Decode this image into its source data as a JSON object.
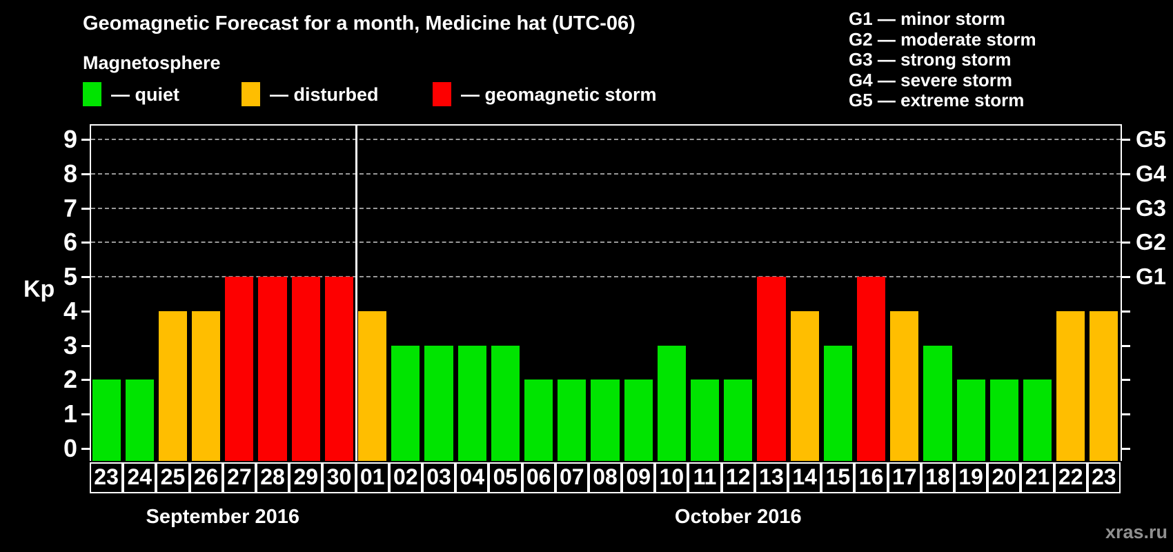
{
  "colors": {
    "quiet": "#00e400",
    "disturbed": "#ffbe00",
    "storm": "#fd0000",
    "grid": "#9a9a9a",
    "axis": "#ffffff",
    "text": "#ffffff",
    "watermark": "#909090",
    "background": "#000000"
  },
  "legend": {
    "title": "Magnetosphere",
    "items": [
      {
        "key": "quiet",
        "label": "— quiet"
      },
      {
        "key": "disturbed",
        "label": "— disturbed"
      },
      {
        "key": "storm",
        "label": "— geomagnetic storm"
      }
    ]
  },
  "g_legend": {
    "items": [
      "G1 — minor storm",
      "G2 — moderate storm",
      "G3 — strong storm",
      "G4 — severe storm",
      "G5 — extreme storm"
    ]
  },
  "footer": {
    "watermark": "xras.ru"
  },
  "chart_data": {
    "type": "bar",
    "title": "Geomagnetic Forecast for a month, Medicine hat (UTC-06)",
    "ylabel": "Kp",
    "ylim": [
      0,
      9
    ],
    "yticks": [
      0,
      1,
      2,
      3,
      4,
      5,
      6,
      7,
      8,
      9
    ],
    "gridlines_at": [
      5,
      6,
      7,
      8,
      9
    ],
    "grid": "dashed horizontal at G-storm levels only",
    "legend_position": "top-left",
    "right_axis_labels": [
      {
        "kp": 5,
        "label": "G1"
      },
      {
        "kp": 6,
        "label": "G2"
      },
      {
        "kp": 7,
        "label": "G3"
      },
      {
        "kp": 8,
        "label": "G4"
      },
      {
        "kp": 9,
        "label": "G5"
      }
    ],
    "months": [
      {
        "name": "September 2016",
        "days": 8
      },
      {
        "name": "October 2016",
        "days": 23
      }
    ],
    "bars": [
      {
        "month": "September 2016",
        "day": "23",
        "value": 2,
        "status": "quiet"
      },
      {
        "month": "September 2016",
        "day": "24",
        "value": 2,
        "status": "quiet"
      },
      {
        "month": "September 2016",
        "day": "25",
        "value": 4,
        "status": "disturbed"
      },
      {
        "month": "September 2016",
        "day": "26",
        "value": 4,
        "status": "disturbed"
      },
      {
        "month": "September 2016",
        "day": "27",
        "value": 5,
        "status": "storm"
      },
      {
        "month": "September 2016",
        "day": "28",
        "value": 5,
        "status": "storm"
      },
      {
        "month": "September 2016",
        "day": "29",
        "value": 5,
        "status": "storm"
      },
      {
        "month": "September 2016",
        "day": "30",
        "value": 5,
        "status": "storm"
      },
      {
        "month": "October 2016",
        "day": "01",
        "value": 4,
        "status": "disturbed"
      },
      {
        "month": "October 2016",
        "day": "02",
        "value": 3,
        "status": "quiet"
      },
      {
        "month": "October 2016",
        "day": "03",
        "value": 3,
        "status": "quiet"
      },
      {
        "month": "October 2016",
        "day": "04",
        "value": 3,
        "status": "quiet"
      },
      {
        "month": "October 2016",
        "day": "05",
        "value": 3,
        "status": "quiet"
      },
      {
        "month": "October 2016",
        "day": "06",
        "value": 2,
        "status": "quiet"
      },
      {
        "month": "October 2016",
        "day": "07",
        "value": 2,
        "status": "quiet"
      },
      {
        "month": "October 2016",
        "day": "08",
        "value": 2,
        "status": "quiet"
      },
      {
        "month": "October 2016",
        "day": "09",
        "value": 2,
        "status": "quiet"
      },
      {
        "month": "October 2016",
        "day": "10",
        "value": 3,
        "status": "quiet"
      },
      {
        "month": "October 2016",
        "day": "11",
        "value": 2,
        "status": "quiet"
      },
      {
        "month": "October 2016",
        "day": "12",
        "value": 2,
        "status": "quiet"
      },
      {
        "month": "October 2016",
        "day": "13",
        "value": 5,
        "status": "storm"
      },
      {
        "month": "October 2016",
        "day": "14",
        "value": 4,
        "status": "disturbed"
      },
      {
        "month": "October 2016",
        "day": "15",
        "value": 3,
        "status": "quiet"
      },
      {
        "month": "October 2016",
        "day": "16",
        "value": 5,
        "status": "storm"
      },
      {
        "month": "October 2016",
        "day": "17",
        "value": 4,
        "status": "disturbed"
      },
      {
        "month": "October 2016",
        "day": "18",
        "value": 3,
        "status": "quiet"
      },
      {
        "month": "October 2016",
        "day": "19",
        "value": 2,
        "status": "quiet"
      },
      {
        "month": "October 2016",
        "day": "20",
        "value": 2,
        "status": "quiet"
      },
      {
        "month": "October 2016",
        "day": "21",
        "value": 2,
        "status": "quiet"
      },
      {
        "month": "October 2016",
        "day": "22",
        "value": 4,
        "status": "disturbed"
      },
      {
        "month": "October 2016",
        "day": "23",
        "value": 4,
        "status": "disturbed"
      }
    ]
  }
}
